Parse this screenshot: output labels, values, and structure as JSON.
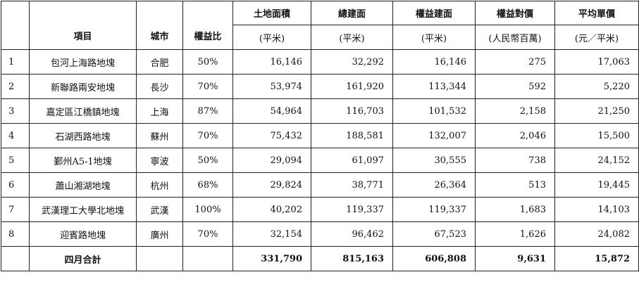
{
  "table": {
    "header": {
      "project": "項目",
      "city": "城市",
      "equity_ratio": "權益比",
      "land_area": "土地面積",
      "gfa": "總建面",
      "equity_gfa": "權益建面",
      "equity_price": "權益對價",
      "avg_price": "平均單價"
    },
    "units": {
      "land_area": "(平米)",
      "gfa": "(平米)",
      "equity_gfa": "(平米)",
      "equity_price": "(人民幣百萬)",
      "avg_price": "(元／平米)"
    },
    "rows": [
      {
        "no": "1",
        "name": "包河上海路地塊",
        "city": "合肥",
        "ratio": "50%",
        "land": "16,146",
        "gfa": "32,292",
        "egfa": "16,146",
        "price": "275",
        "avg": "17,063"
      },
      {
        "no": "2",
        "name": "新聯路兩安地塊",
        "city": "長沙",
        "ratio": "70%",
        "land": "53,974",
        "gfa": "161,920",
        "egfa": "113,344",
        "price": "592",
        "avg": "5,220"
      },
      {
        "no": "3",
        "name": "嘉定區江橋鎮地塊",
        "city": "上海",
        "ratio": "87%",
        "land": "54,964",
        "gfa": "116,703",
        "egfa": "101,532",
        "price": "2,158",
        "avg": "21,250"
      },
      {
        "no": "4",
        "name": "石湖西路地塊",
        "city": "蘇州",
        "ratio": "70%",
        "land": "75,432",
        "gfa": "188,581",
        "egfa": "132,007",
        "price": "2,046",
        "avg": "15,500"
      },
      {
        "no": "5",
        "name": "鄞州A5-1地塊",
        "city": "寧波",
        "ratio": "50%",
        "land": "29,094",
        "gfa": "61,097",
        "egfa": "30,555",
        "price": "738",
        "avg": "24,152"
      },
      {
        "no": "6",
        "name": "蕭山湘湖地塊",
        "city": "杭州",
        "ratio": "68%",
        "land": "29,824",
        "gfa": "38,771",
        "egfa": "26,364",
        "price": "513",
        "avg": "19,445"
      },
      {
        "no": "7",
        "name": "武漢理工大學北地塊",
        "city": "武漢",
        "ratio": "100%",
        "land": "40,202",
        "gfa": "119,337",
        "egfa": "119,337",
        "price": "1,683",
        "avg": "14,103"
      },
      {
        "no": "8",
        "name": "迎賓路地塊",
        "city": "廣州",
        "ratio": "70%",
        "land": "32,154",
        "gfa": "96,462",
        "egfa": "67,523",
        "price": "1,626",
        "avg": "24,082"
      }
    ],
    "total": {
      "label": "四月合計",
      "land": "331,790",
      "gfa": "815,163",
      "egfa": "606,808",
      "price": "9,631",
      "avg": "15,872"
    }
  }
}
